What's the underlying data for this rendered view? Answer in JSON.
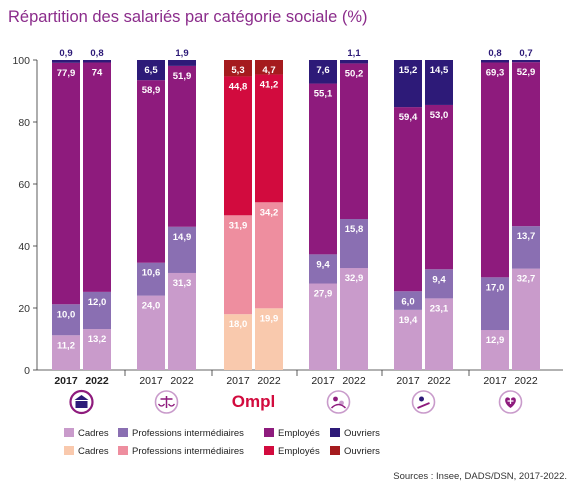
{
  "title": "Répartition des salariés par catégorie sociale (%)",
  "source": "Sources : Insee, DADS/DSN, 2017-2022.",
  "chart_data": {
    "type": "bar",
    "stacked": true,
    "ylim": [
      0,
      100
    ],
    "yticks": [
      0,
      20,
      40,
      60,
      80,
      100
    ],
    "grid": false,
    "years": [
      "2017",
      "2022"
    ],
    "groups": [
      {
        "icon": "bank-icon",
        "bold_years": true,
        "palette": "standard",
        "bars": [
          {
            "year": "2017",
            "values": [
              11.2,
              10.0,
              77.9,
              0.9
            ],
            "labels": [
              "11,2",
              "10,0",
              "77,9",
              "0,9"
            ]
          },
          {
            "year": "2022",
            "values": [
              13.2,
              12.0,
              74.0,
              0.8
            ],
            "labels": [
              "13,2",
              "12,0",
              "74",
              "0,8"
            ]
          }
        ]
      },
      {
        "icon": "scales-icon",
        "bold_years": false,
        "palette": "standard",
        "bars": [
          {
            "year": "2017",
            "values": [
              24.0,
              10.6,
              58.9,
              6.5
            ],
            "labels": [
              "24,0",
              "10,6",
              "58,9",
              "6,5"
            ]
          },
          {
            "year": "2022",
            "values": [
              31.3,
              14.9,
              51.9,
              1.9
            ],
            "labels": [
              "31,3",
              "14,9",
              "51,9",
              "1,9"
            ]
          }
        ]
      },
      {
        "icon": "ompl-logo",
        "logo_text": "Ompl",
        "bold_years": false,
        "palette": "highlight",
        "bars": [
          {
            "year": "2017",
            "values": [
              18.0,
              31.9,
              44.8,
              5.3
            ],
            "labels": [
              "18,0",
              "31,9",
              "44,8",
              "5,3"
            ]
          },
          {
            "year": "2022",
            "values": [
              19.9,
              34.2,
              41.2,
              4.7
            ],
            "labels": [
              "19,9",
              "34,2",
              "41,2",
              "4,7"
            ]
          }
        ]
      },
      {
        "icon": "people-icon",
        "bold_years": false,
        "palette": "standard",
        "bars": [
          {
            "year": "2017",
            "values": [
              27.9,
              9.4,
              55.1,
              7.6
            ],
            "labels": [
              "27,9",
              "9,4",
              "55,1",
              "7,6"
            ]
          },
          {
            "year": "2022",
            "values": [
              32.9,
              15.8,
              50.2,
              1.1
            ],
            "labels": [
              "32,9",
              "15,8",
              "50,2",
              "1,1"
            ]
          }
        ]
      },
      {
        "icon": "technical-icon",
        "bold_years": false,
        "palette": "standard",
        "bars": [
          {
            "year": "2017",
            "values": [
              19.4,
              6.0,
              59.4,
              15.2
            ],
            "labels": [
              "19,4",
              "6,0",
              "59,4",
              "15,2"
            ]
          },
          {
            "year": "2022",
            "values": [
              23.1,
              9.4,
              53.0,
              14.5
            ],
            "labels": [
              "23,1",
              "9,4",
              "53,0",
              "14,5"
            ]
          }
        ]
      },
      {
        "icon": "health-icon",
        "bold_years": false,
        "palette": "standard",
        "bars": [
          {
            "year": "2017",
            "values": [
              12.9,
              17.0,
              69.3,
              0.8
            ],
            "labels": [
              "12,9",
              "17,0",
              "69,3",
              "0,8"
            ]
          },
          {
            "year": "2022",
            "values": [
              32.7,
              13.7,
              52.9,
              0.7
            ],
            "labels": [
              "32,7",
              "13,7",
              "52,9",
              "0,7"
            ]
          }
        ]
      }
    ],
    "categories": [
      "Cadres",
      "Professions intermédiaires",
      "Employés",
      "Ouvriers"
    ],
    "colors": {
      "standard": [
        "#c99bcb",
        "#8a6fb2",
        "#8e1b7d",
        "#2d1a78"
      ],
      "highlight": [
        "#f9c9ad",
        "#ee8e9f",
        "#d20b3e",
        "#a51b1e"
      ]
    },
    "label_colors": {
      "standard": [
        "#ffffff",
        "#ffffff",
        "#ffffff",
        "#ffffff"
      ],
      "highlight": [
        "#ffffff",
        "#ffffff",
        "#ffffff",
        "#ffffff"
      ]
    },
    "legend": [
      {
        "palette": "standard",
        "items": [
          {
            "label": "Cadres",
            "color": "#c99bcb"
          },
          {
            "label": "Professions intermédiaires",
            "color": "#8a6fb2"
          },
          {
            "label": "Employés",
            "color": "#8e1b7d"
          },
          {
            "label": "Ouvriers",
            "color": "#2d1a78"
          }
        ]
      },
      {
        "palette": "highlight",
        "items": [
          {
            "label": "Cadres",
            "color": "#f9c9ad"
          },
          {
            "label": "Professions intermédiaires",
            "color": "#ee8e9f"
          },
          {
            "label": "Employés",
            "color": "#d20b3e"
          },
          {
            "label": "Ouvriers",
            "color": "#a51b1e"
          }
        ]
      }
    ]
  }
}
